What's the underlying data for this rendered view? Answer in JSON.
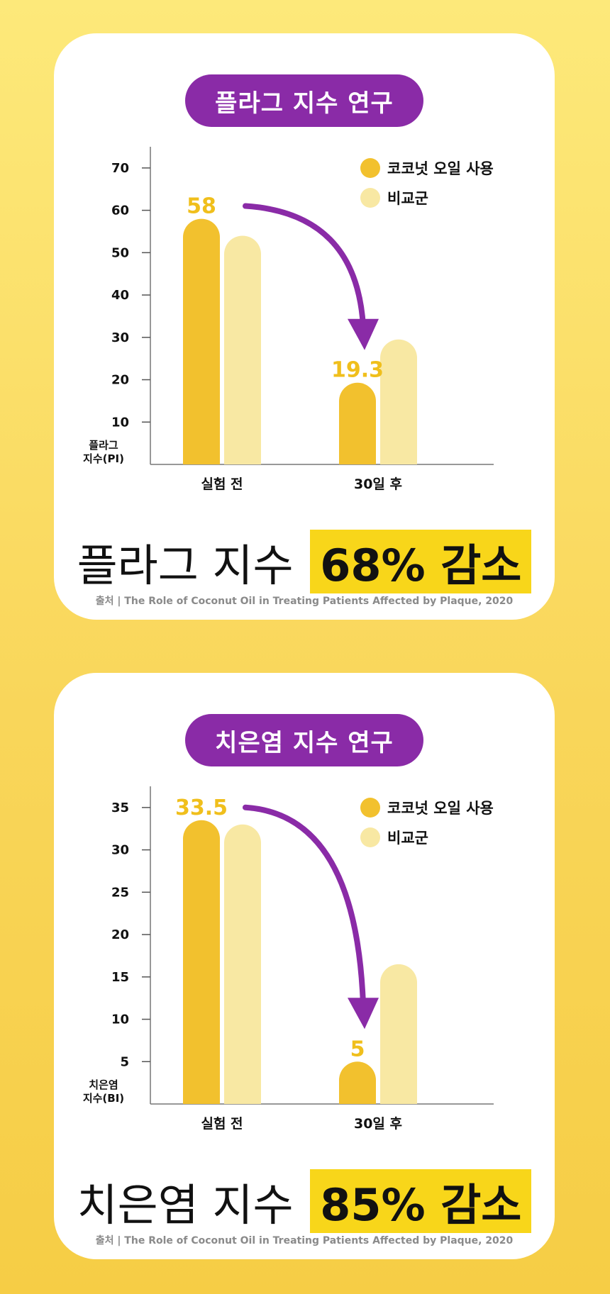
{
  "colors": {
    "primary": "#f2c12e",
    "comparison": "#f8e8a3",
    "arrow": "#8a2ba7",
    "highlight": "#f8d61a"
  },
  "chart_data": [
    {
      "type": "bar",
      "title": "플라그 지수 연구",
      "ylabel": "플라그 지수(PI)",
      "ylim": [
        0,
        75
      ],
      "yticks": [
        10,
        20,
        30,
        40,
        50,
        60,
        70
      ],
      "categories": [
        "실험 전",
        "30일 후"
      ],
      "series": [
        {
          "name": "코코넛 오일 사용",
          "values": [
            58,
            19.3
          ]
        },
        {
          "name": "비교군",
          "values": [
            54,
            29.5
          ]
        }
      ],
      "data_labels": [
        "58",
        "19.3"
      ],
      "legend": "top-right",
      "summary_text": "플라그 지수",
      "summary_highlight": "68% 감소",
      "source": "출처 | The Role of Coconut Oil in Treating Patients Affected by Plaque, 2020"
    },
    {
      "type": "bar",
      "title": "치은염 지수 연구",
      "ylabel": "치은염 지수(BI)",
      "ylim": [
        0,
        37.5
      ],
      "yticks": [
        5,
        10,
        15,
        20,
        25,
        30,
        35
      ],
      "categories": [
        "실험 전",
        "30일 후"
      ],
      "series": [
        {
          "name": "코코넛 오일 사용",
          "values": [
            33.5,
            5
          ]
        },
        {
          "name": "비교군",
          "values": [
            33,
            16.5
          ]
        }
      ],
      "data_labels": [
        "33.5",
        "5"
      ],
      "legend": "top-right",
      "summary_text": "치은염 지수",
      "summary_highlight": "85% 감소",
      "source": "출처 | The Role of Coconut Oil in Treating Patients Affected by Plaque, 2020"
    }
  ]
}
